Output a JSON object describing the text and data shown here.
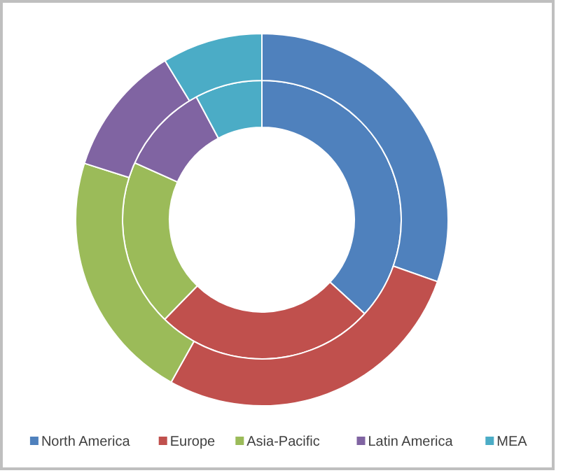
{
  "chart_data": {
    "type": "donut",
    "categories": [
      "North America",
      "Europe",
      "Asia-Pacific",
      "Latin America",
      "MEA"
    ],
    "colors": [
      "#4f81bd",
      "#c0504d",
      "#9bbb59",
      "#8064a2",
      "#4bacc6"
    ],
    "series": [
      {
        "values": [
          36.8,
          25.5,
          19.4,
          10.5,
          7.8
        ]
      },
      {
        "values": [
          30.4,
          27.7,
          21.8,
          11.4,
          8.7
        ]
      }
    ],
    "legend": "bottom"
  }
}
